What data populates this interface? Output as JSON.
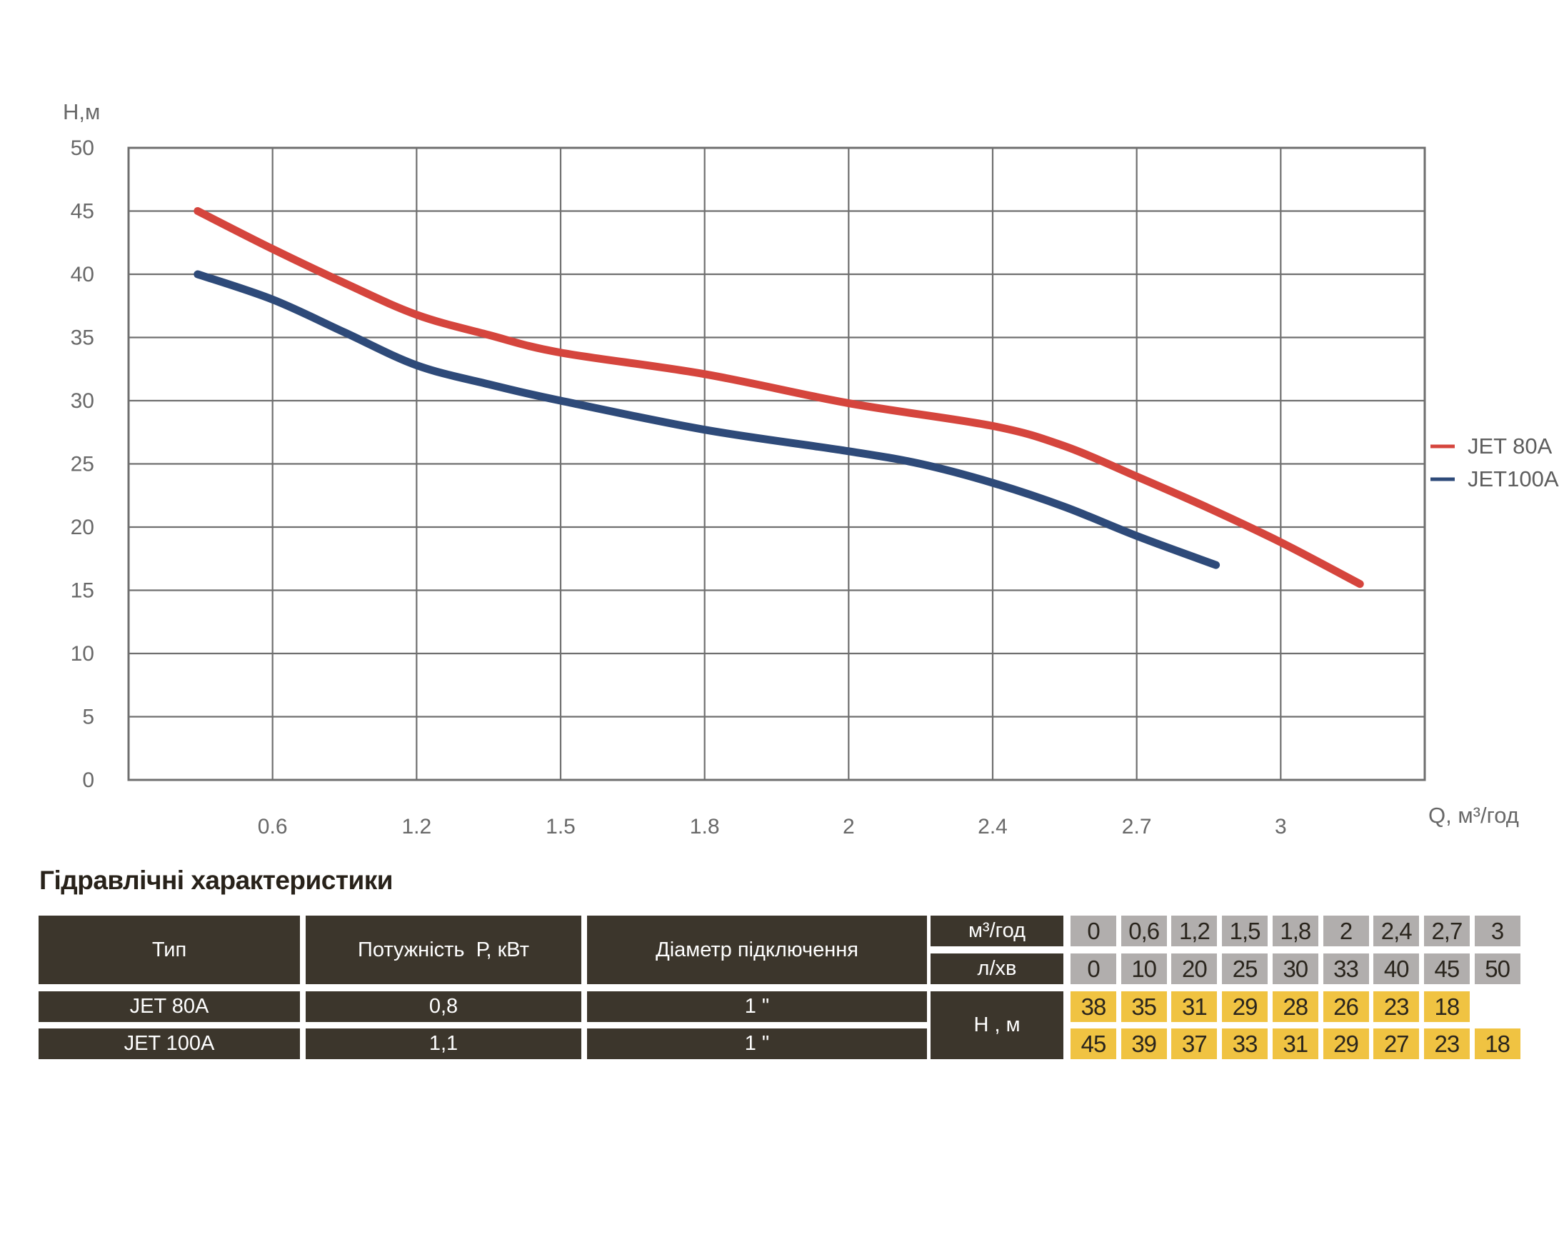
{
  "chart_data": {
    "type": "line",
    "title": "",
    "x_axis": {
      "label": "Q, м³/год",
      "tick_labels": [
        "0.6",
        "1.2",
        "1.5",
        "1.8",
        "2",
        "2.4",
        "2.7",
        "3"
      ],
      "note": "evenly spaced gridlines; 9 intervals from unlabeled 0 at left border",
      "interval_count": 9
    },
    "y_axis": {
      "label": "Н,м",
      "ticks": [
        0,
        5,
        10,
        15,
        20,
        25,
        30,
        35,
        40,
        45,
        50
      ],
      "range": [
        0,
        50
      ]
    },
    "grid": true,
    "legend_position": "right",
    "series": [
      {
        "name": "JET 80A",
        "color": "#d5453d",
        "points_grid_h": [
          [
            0.48,
            45
          ],
          [
            1,
            42
          ],
          [
            1.5,
            39.3
          ],
          [
            2,
            36.8
          ],
          [
            2.5,
            35.2
          ],
          [
            3,
            33.8
          ],
          [
            4,
            32.1
          ],
          [
            5,
            29.8
          ],
          [
            6,
            28
          ],
          [
            6.5,
            26.4
          ],
          [
            7,
            24
          ],
          [
            7.5,
            21.5
          ],
          [
            8,
            18.8
          ],
          [
            8.55,
            15.5
          ]
        ]
      },
      {
        "name": "JET100A",
        "color": "#2e4a79",
        "points_grid_h": [
          [
            0.48,
            40
          ],
          [
            1,
            38
          ],
          [
            1.5,
            35.4
          ],
          [
            2,
            32.8
          ],
          [
            2.5,
            31.3
          ],
          [
            3,
            30
          ],
          [
            4,
            27.7
          ],
          [
            5,
            26
          ],
          [
            5.5,
            25
          ],
          [
            6,
            23.5
          ],
          [
            6.5,
            21.6
          ],
          [
            7,
            19.3
          ],
          [
            7.55,
            17
          ]
        ]
      }
    ]
  },
  "table": {
    "title": "Гідравлічні характеристики",
    "headers": {
      "type": "Тип",
      "power": "Потужність  Р, кВт",
      "diameter": "Діаметр підключення",
      "flow_m3": "м³/год",
      "flow_lmin": "л/хв",
      "head": "Н , м"
    },
    "flow_m3_values": [
      "0",
      "0,6",
      "1,2",
      "1,5",
      "1,8",
      "2",
      "2,4",
      "2,7",
      "3"
    ],
    "flow_lmin_values": [
      "0",
      "10",
      "20",
      "25",
      "30",
      "33",
      "40",
      "45",
      "50"
    ],
    "rows": [
      {
        "type": "JET 80A",
        "power": "0,8",
        "diameter": "1 \"",
        "head_values": [
          "38",
          "35",
          "31",
          "29",
          "28",
          "26",
          "23",
          "18",
          ""
        ]
      },
      {
        "type": "JET 100A",
        "power": "1,1",
        "diameter": "1 \"",
        "head_values": [
          "45",
          "39",
          "37",
          "33",
          "31",
          "29",
          "27",
          "23",
          "18"
        ]
      }
    ],
    "colors": {
      "header_bg": "#3c362c",
      "grey_bg": "#b1aead",
      "yellow_bg": "#f0c342",
      "header_text": "#ffffff",
      "cell_text": "#2a251d",
      "grid_line": "#6f6f6f"
    }
  }
}
